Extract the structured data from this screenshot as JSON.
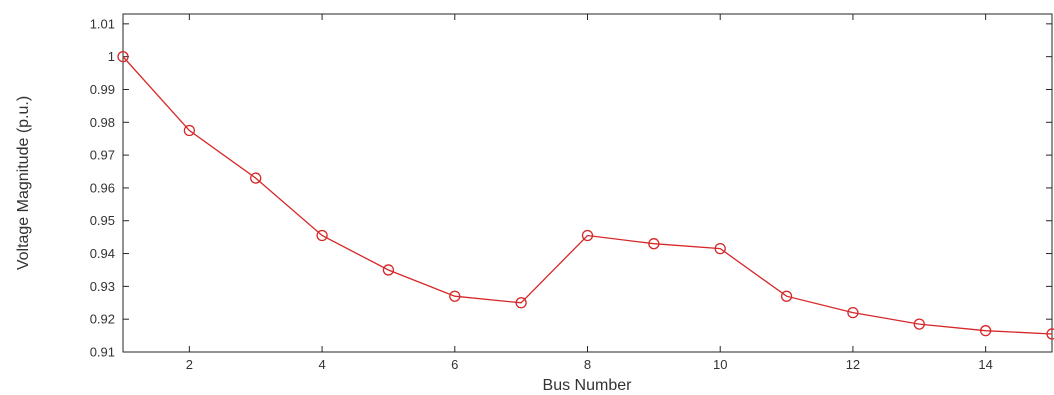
{
  "chart_data": {
    "type": "line",
    "title": "",
    "xlabel": "Bus Number",
    "ylabel": "Voltage Magnitude (p.u.)",
    "xlim": [
      1,
      15
    ],
    "ylim": [
      0.91,
      1.013
    ],
    "xticks": [
      2,
      4,
      6,
      8,
      10,
      12,
      14
    ],
    "yticks": [
      0.91,
      0.92,
      0.93,
      0.94,
      0.95,
      0.96,
      0.97,
      0.98,
      0.99,
      1,
      1.01
    ],
    "xtick_labels": [
      "2",
      "4",
      "6",
      "8",
      "10",
      "12",
      "14"
    ],
    "ytick_labels": [
      "0.91",
      "0.92",
      "0.93",
      "0.94",
      "0.95",
      "0.96",
      "0.97",
      "0.98",
      "0.99",
      "1",
      "1.01"
    ],
    "grid": false,
    "marker": "circle",
    "color": "#d62728",
    "series": [
      {
        "x": [
          1,
          2,
          3,
          4,
          5,
          6,
          7,
          8,
          9,
          10,
          11,
          12,
          13,
          14,
          15
        ],
        "y": [
          1.0,
          0.9775,
          0.963,
          0.9455,
          0.935,
          0.927,
          0.925,
          0.9455,
          0.943,
          0.9415,
          0.927,
          0.922,
          0.9185,
          0.9165,
          0.9155
        ]
      }
    ]
  }
}
